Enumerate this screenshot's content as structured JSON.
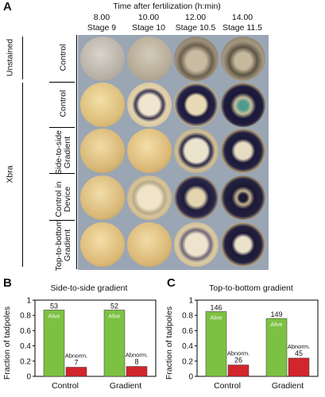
{
  "panelA": {
    "letter": "A",
    "time_title": "Time after fertilization (h:min)",
    "columns": [
      {
        "time": "8.00",
        "stage": "Stage 9"
      },
      {
        "time": "10.00",
        "stage": "Stage 10"
      },
      {
        "time": "12.00",
        "stage": "Stage 10.5"
      },
      {
        "time": "14.00",
        "stage": "Stage 11.5"
      }
    ],
    "group_unstained": "Unstained",
    "group_xbra": "Xbra",
    "rows": [
      {
        "label": "Control"
      },
      {
        "label": "Control"
      },
      {
        "label": "Side-to-side Gradient"
      },
      {
        "label": "Control in Device"
      },
      {
        "label": "Top-to-bottom Gradient"
      }
    ]
  },
  "panelB": {
    "letter": "B",
    "title": "Side-to-side gradient",
    "ylabel": "Fraction of tadpoles",
    "alive_label": "Alive",
    "abnorm_label": "Abnorm.",
    "colors": {
      "alive": "#7dc142",
      "abnorm": "#d1262c"
    }
  },
  "panelC": {
    "letter": "C",
    "title": "Top-to-bottom gradient",
    "ylabel": "Fraction of tadpoles",
    "alive_label": "Alive",
    "abnorm_label": "Abnorm.",
    "colors": {
      "alive": "#7dc142",
      "abnorm": "#d1262c"
    }
  },
  "chart_data": [
    {
      "type": "bar",
      "title": "Side-to-side gradient",
      "ylabel": "Fraction of tadpoles",
      "categories": [
        "Control",
        "Gradient"
      ],
      "series": [
        {
          "name": "Alive",
          "values": [
            0.87,
            0.87
          ],
          "labels": [
            "53",
            "52"
          ]
        },
        {
          "name": "Abnorm.",
          "values": [
            0.12,
            0.13
          ],
          "labels": [
            "7",
            "8"
          ]
        }
      ],
      "ylim": [
        0,
        1
      ],
      "yticks": [
        "0",
        "0.2",
        "0.4",
        "0.6",
        "0.8",
        "1"
      ]
    },
    {
      "type": "bar",
      "title": "Top-to-bottom gradient",
      "ylabel": "Fraction of tadpoles",
      "categories": [
        "Control",
        "Gradient"
      ],
      "series": [
        {
          "name": "Alive",
          "values": [
            0.85,
            0.76
          ],
          "labels": [
            "146",
            "149"
          ]
        },
        {
          "name": "Abnorm.",
          "values": [
            0.15,
            0.24
          ],
          "labels": [
            "26",
            "45"
          ]
        }
      ],
      "ylim": [
        0,
        1
      ],
      "yticks": [
        "0",
        "0.2",
        "0.4",
        "0.6",
        "0.8",
        "1"
      ]
    }
  ]
}
